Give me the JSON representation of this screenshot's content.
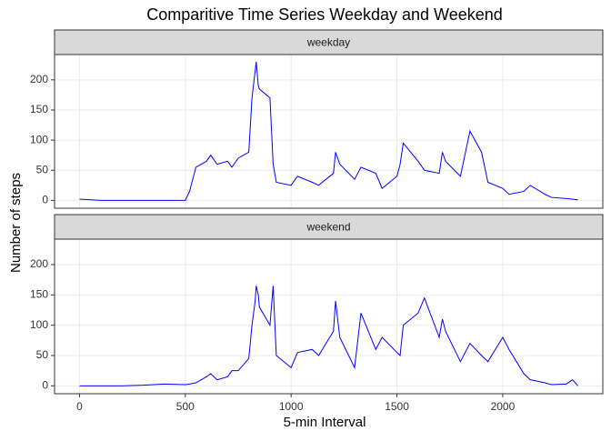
{
  "chart_data": {
    "type": "line",
    "title": "Comparitive Time Series Weekday and Weekend",
    "xlabel": "5-min Interval",
    "ylabel": "Number of steps",
    "x": [
      0,
      100,
      200,
      300,
      400,
      500,
      520,
      550,
      600,
      620,
      650,
      700,
      720,
      750,
      800,
      815,
      830,
      835,
      845,
      850,
      900,
      915,
      930,
      1000,
      1030,
      1100,
      1130,
      1200,
      1210,
      1230,
      1300,
      1330,
      1400,
      1430,
      1500,
      1515,
      1530,
      1600,
      1630,
      1700,
      1715,
      1730,
      1800,
      1830,
      1845,
      1900,
      1930,
      2000,
      2030,
      2100,
      2130,
      2200,
      2230,
      2300,
      2330,
      2355
    ],
    "series": [
      {
        "name": "weekday",
        "color": "#0000ff",
        "values": [
          2,
          0,
          0,
          0,
          0,
          0,
          15,
          55,
          65,
          75,
          60,
          65,
          55,
          70,
          80,
          170,
          215,
          230,
          190,
          185,
          170,
          60,
          30,
          25,
          40,
          30,
          25,
          45,
          80,
          60,
          35,
          55,
          45,
          20,
          40,
          60,
          95,
          65,
          50,
          45,
          80,
          65,
          40,
          90,
          115,
          80,
          30,
          20,
          10,
          15,
          25,
          10,
          5,
          3,
          2,
          1
        ]
      },
      {
        "name": "weekend",
        "color": "#0000ff",
        "values": [
          0,
          0,
          0,
          1,
          3,
          2,
          3,
          5,
          15,
          20,
          10,
          15,
          25,
          25,
          45,
          100,
          140,
          165,
          150,
          130,
          100,
          165,
          50,
          30,
          55,
          60,
          50,
          90,
          140,
          80,
          30,
          120,
          60,
          80,
          55,
          50,
          100,
          120,
          145,
          80,
          110,
          90,
          40,
          60,
          70,
          50,
          40,
          80,
          60,
          20,
          10,
          5,
          2,
          3,
          10,
          0
        ]
      }
    ],
    "xlim": [
      -118,
      2473
    ],
    "xticks": [
      0,
      500,
      1000,
      1500,
      2000
    ],
    "ylim": [
      -13,
      242
    ],
    "yticks": [
      0,
      50,
      100,
      150,
      200
    ],
    "grid": true
  }
}
